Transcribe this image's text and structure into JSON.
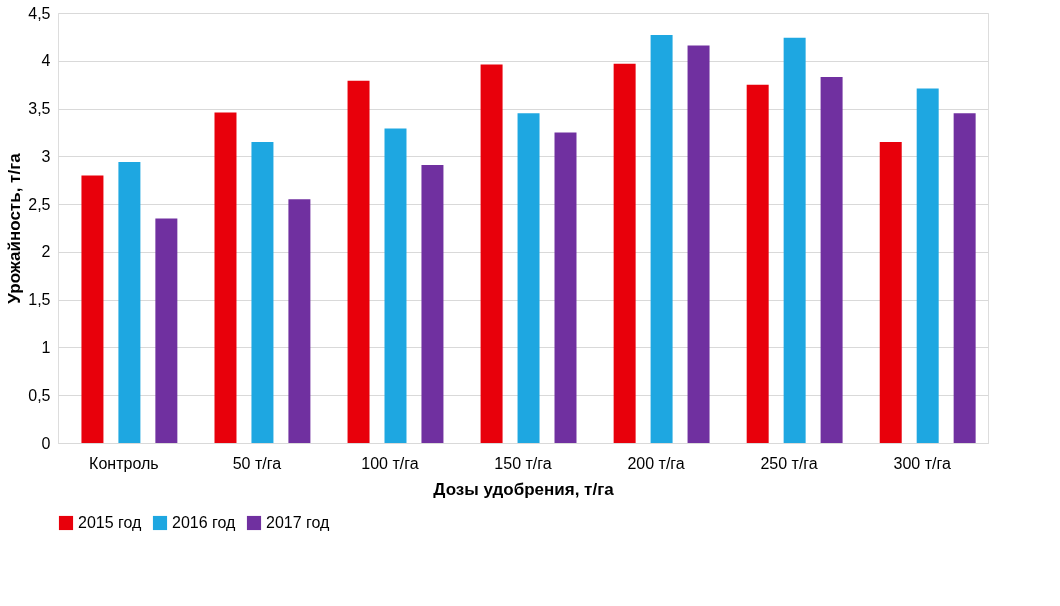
{
  "chart_data": {
    "type": "bar",
    "xlabel": "Дозы удобрения, т/га",
    "ylabel": "Урожайность, т/га",
    "categories": [
      "Контроль",
      "50 т/га",
      "100 т/га",
      "150 т/га",
      "200 т/га",
      "250 т/га",
      "300 т/га"
    ],
    "series": [
      {
        "name": "2015 год",
        "color": "#e8000b",
        "values": [
          2.8,
          3.46,
          3.79,
          3.96,
          3.97,
          3.75,
          3.15
        ]
      },
      {
        "name": "2016 год",
        "color": "#1ea7e1",
        "values": [
          2.94,
          3.15,
          3.29,
          3.45,
          4.27,
          4.24,
          3.71
        ]
      },
      {
        "name": "2017 год",
        "color": "#7030a0",
        "values": [
          2.35,
          2.55,
          2.91,
          3.25,
          4.16,
          3.83,
          3.45
        ]
      }
    ],
    "ylim": [
      0,
      4.5
    ],
    "yticks": [
      0,
      {
        "value": 0.5,
        "label": "0,5"
      },
      1,
      {
        "value": 1.5,
        "label": "1,5"
      },
      2,
      {
        "value": 2.5,
        "label": "2,5"
      },
      3,
      {
        "value": 3.5,
        "label": "3,5"
      },
      4,
      {
        "value": 4.5,
        "label": "4,5"
      }
    ],
    "grid": "y",
    "legend": "bottom"
  }
}
